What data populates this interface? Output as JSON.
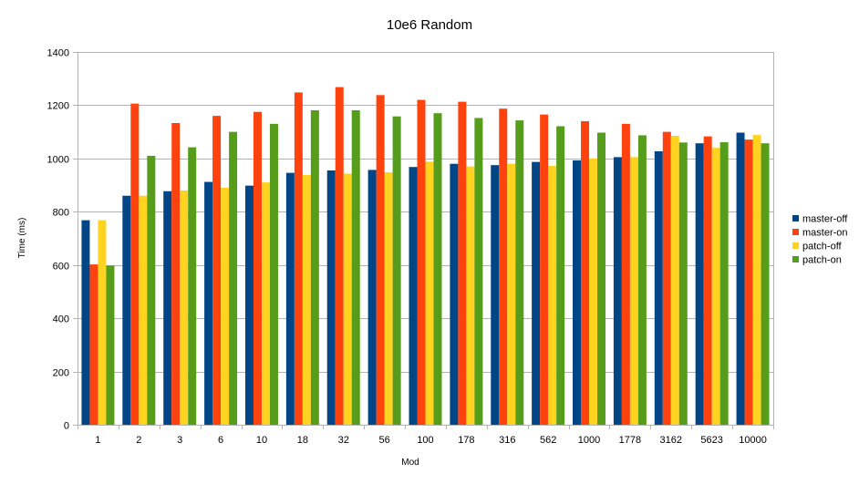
{
  "chart_data": {
    "type": "bar",
    "title": "10e6 Random",
    "xlabel": "Mod",
    "ylabel": "Time (ms)",
    "ylim": [
      0,
      1400
    ],
    "yticks": [
      0,
      200,
      400,
      600,
      800,
      1000,
      1200,
      1400
    ],
    "grid": true,
    "legend_position": "right",
    "categories": [
      "1",
      "2",
      "3",
      "6",
      "10",
      "18",
      "32",
      "56",
      "100",
      "178",
      "316",
      "562",
      "1000",
      "1778",
      "3162",
      "5623",
      "10000"
    ],
    "series": [
      {
        "name": "master-off",
        "color": "#004586",
        "values": [
          768,
          860,
          877,
          912,
          898,
          946,
          955,
          957,
          968,
          980,
          975,
          987,
          993,
          1005,
          1027,
          1057,
          1097
        ]
      },
      {
        "name": "master-on",
        "color": "#ff420e",
        "values": [
          602,
          1206,
          1133,
          1160,
          1175,
          1248,
          1268,
          1238,
          1220,
          1213,
          1187,
          1165,
          1140,
          1130,
          1100,
          1083,
          1071
        ]
      },
      {
        "name": "patch-off",
        "color": "#ffd320",
        "values": [
          768,
          860,
          880,
          890,
          910,
          938,
          943,
          948,
          988,
          970,
          980,
          972,
          1000,
          1005,
          1085,
          1040,
          1088
        ]
      },
      {
        "name": "patch-on",
        "color": "#579d1c",
        "values": [
          598,
          1010,
          1042,
          1100,
          1130,
          1181,
          1181,
          1158,
          1170,
          1152,
          1143,
          1121,
          1097,
          1087,
          1060,
          1061,
          1057
        ]
      }
    ]
  }
}
